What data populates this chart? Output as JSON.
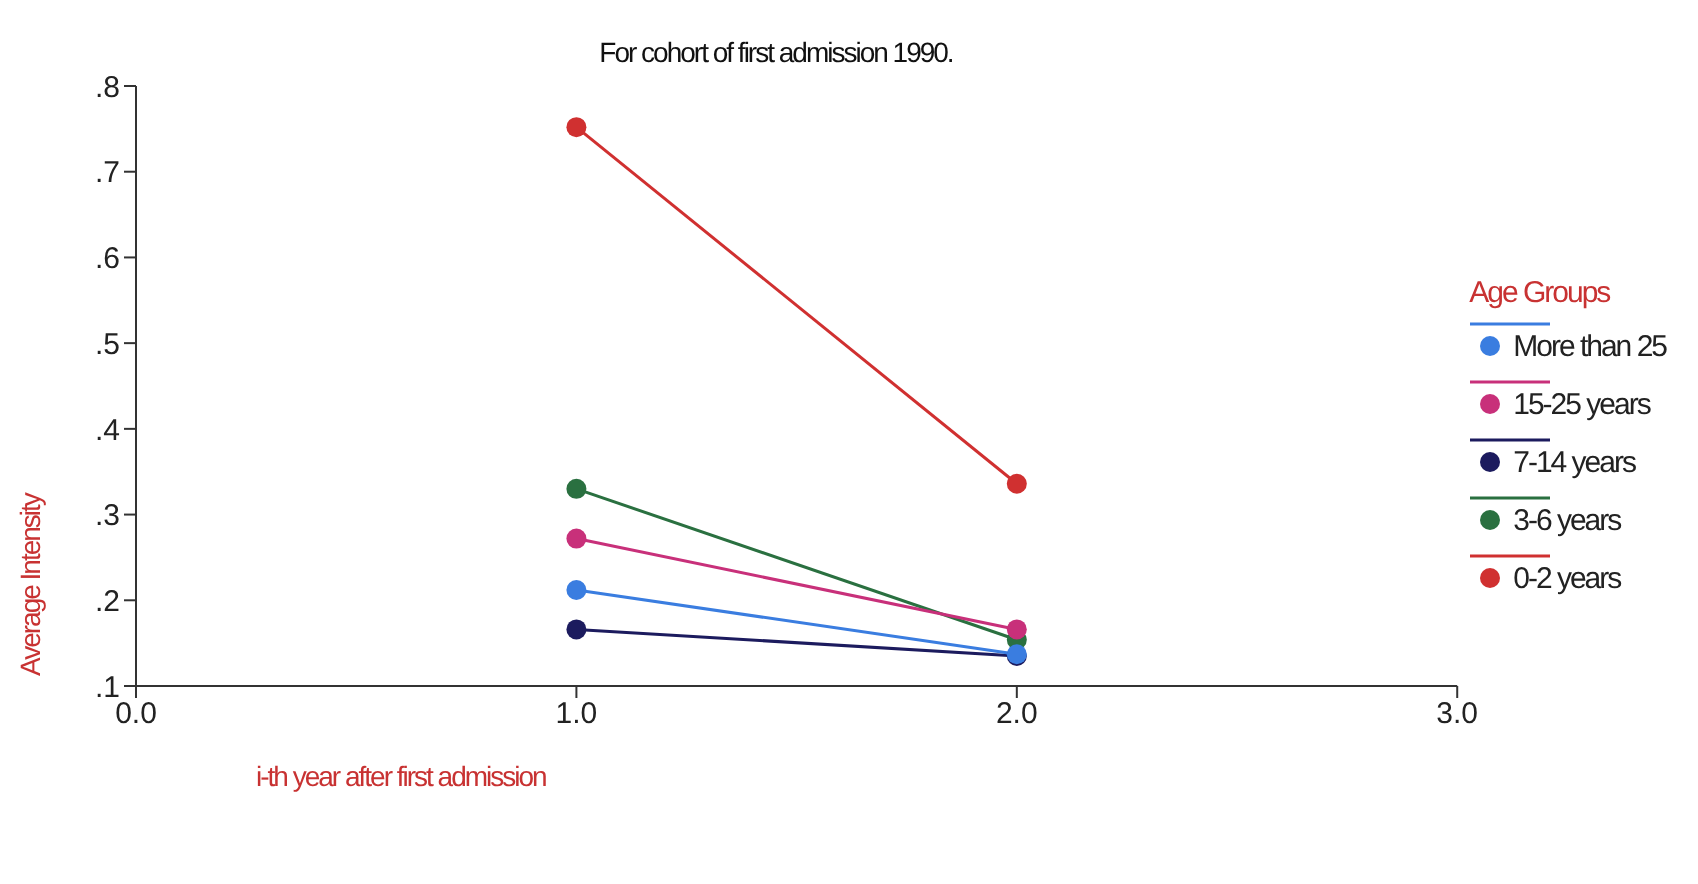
{
  "chart_data": {
    "type": "line",
    "title": "For cohort of first admission 1990.",
    "xlabel": "i-th year after first admission",
    "ylabel": "Average Intensity",
    "legend_title": "Age Groups",
    "x": [
      1,
      2
    ],
    "series": [
      {
        "name": "More than 25",
        "color": "#3a7de0",
        "values": [
          0.212,
          0.137
        ]
      },
      {
        "name": "15-25 years",
        "color": "#c8307a",
        "values": [
          0.272,
          0.166
        ]
      },
      {
        "name": "7-14 years",
        "color": "#1c1b5e",
        "values": [
          0.166,
          0.135
        ]
      },
      {
        "name": "3-6 years",
        "color": "#2a7040",
        "values": [
          0.33,
          0.154
        ]
      },
      {
        "name": "0-2 years",
        "color": "#d03030",
        "values": [
          0.752,
          0.336
        ]
      }
    ],
    "xlim": [
      0,
      3
    ],
    "xticks": [
      {
        "value": 0,
        "label": "0.0"
      },
      {
        "value": 1,
        "label": "1.0"
      },
      {
        "value": 2,
        "label": "2.0"
      },
      {
        "value": 3,
        "label": "3.0"
      }
    ],
    "ylim": [
      0.1,
      0.8
    ],
    "yticks": [
      {
        "value": 0.1,
        "label": ".1"
      },
      {
        "value": 0.2,
        "label": ".2"
      },
      {
        "value": 0.3,
        "label": ".3"
      },
      {
        "value": 0.4,
        "label": ".4"
      },
      {
        "value": 0.5,
        "label": ".5"
      },
      {
        "value": 0.6,
        "label": ".6"
      },
      {
        "value": 0.7,
        "label": ".7"
      },
      {
        "value": 0.8,
        "label": ".8"
      }
    ],
    "grid": false,
    "legend": "right",
    "marker": "circle",
    "line_style": "solid"
  }
}
